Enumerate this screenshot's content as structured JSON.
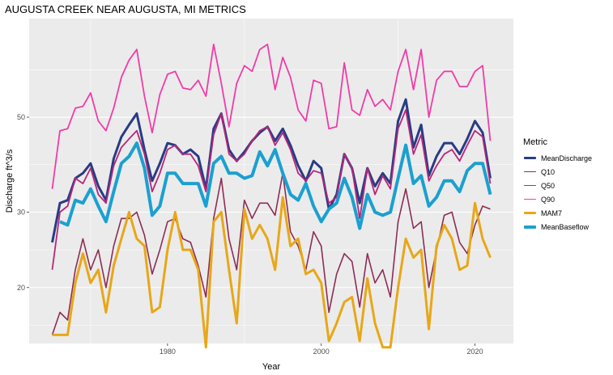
{
  "chart_data": {
    "type": "line",
    "title": "AUGUSTA CREEK NEAR AUGUSTA, MI  METRICS",
    "xlabel": "Year",
    "ylabel": "Discharge ft^3/s",
    "y_scale": "log",
    "xlim": [
      1962,
      2025
    ],
    "ylim": [
      14.8,
      85
    ],
    "x_ticks": [
      1980,
      2000,
      2020
    ],
    "x_tick_labels": [
      "1980",
      "2000",
      "2020"
    ],
    "y_ticks": [
      20,
      30,
      50
    ],
    "y_tick_labels": [
      "20",
      "30",
      "50"
    ],
    "grid": true,
    "legend_title": "Metric",
    "legend_position": "right",
    "years": [
      1965,
      1966,
      1967,
      1968,
      1969,
      1970,
      1971,
      1972,
      1973,
      1974,
      1975,
      1976,
      1977,
      1978,
      1979,
      1980,
      1981,
      1982,
      1983,
      1984,
      1985,
      1986,
      1987,
      1988,
      1989,
      1990,
      1991,
      1992,
      1993,
      1994,
      1995,
      1996,
      1997,
      1998,
      1999,
      2000,
      2001,
      2002,
      2003,
      2004,
      2005,
      2006,
      2007,
      2008,
      2009,
      2010,
      2011,
      2012,
      2013,
      2014,
      2015,
      2016,
      2017,
      2018,
      2019,
      2020,
      2021,
      2022
    ],
    "series": [
      {
        "name": "MeanDischarge",
        "color": "#283c84",
        "width": 3,
        "values": [
          25.5,
          31.5,
          32,
          36,
          37,
          39,
          34.5,
          32,
          40,
          45,
          48,
          51,
          42,
          35.5,
          39,
          43.5,
          43,
          41,
          42,
          40.5,
          34,
          47,
          51,
          42,
          39.5,
          41.5,
          44,
          46,
          47.5,
          44,
          47,
          43,
          38.5,
          35.5,
          39.5,
          38,
          30.5,
          33,
          41,
          38,
          31.5,
          38,
          34.5,
          37,
          35,
          49,
          55,
          42.5,
          48,
          36.5,
          40.5,
          43.5,
          43.5,
          41,
          44.5,
          49,
          46,
          36
        ]
      },
      {
        "name": "Q10",
        "color": "#8c2d55",
        "width": 1.6,
        "values": [
          15.5,
          17.5,
          16.8,
          22,
          26,
          22,
          24.5,
          20,
          25,
          29,
          29,
          30,
          26.5,
          21.5,
          24.5,
          28.5,
          29,
          26,
          25.5,
          22.5,
          19,
          29,
          36,
          26,
          22,
          32,
          29,
          31.5,
          31.5,
          29.5,
          37,
          27,
          25,
          22,
          27,
          25,
          17.5,
          21.5,
          24,
          23,
          18,
          24,
          20.5,
          22,
          19,
          28.5,
          34,
          27.5,
          28.5,
          20,
          24.5,
          29.5,
          30,
          25.5,
          24,
          28,
          31,
          30.5
        ]
      },
      {
        "name": "Q50",
        "color": "#b8267a",
        "width": 1.8,
        "values": [
          22,
          30,
          31,
          36,
          35,
          38,
          33,
          31.5,
          38.5,
          42.5,
          44.5,
          46.5,
          41,
          33.5,
          37,
          42,
          43,
          41,
          41,
          38.5,
          33.5,
          45.5,
          51,
          41,
          39.5,
          41,
          44,
          46.5,
          47.5,
          43,
          46,
          42,
          37,
          35.5,
          37.5,
          37,
          31.5,
          32.5,
          41,
          38,
          29,
          38,
          33,
          36.5,
          34,
          47,
          52,
          41,
          45.5,
          35.5,
          38.5,
          41,
          42,
          39.5,
          43,
          46.5,
          45,
          35
        ]
      },
      {
        "name": "Q90",
        "color": "#f03ca8",
        "width": 1.8,
        "values": [
          34,
          46.5,
          47,
          52.5,
          53,
          57,
          49,
          46.5,
          52.5,
          62,
          68,
          72,
          56,
          46,
          56.5,
          63,
          64,
          58.5,
          58,
          61,
          56,
          74,
          60,
          47.5,
          60,
          66,
          64,
          72,
          74,
          58,
          69,
          62,
          52,
          49,
          61,
          60,
          47,
          47.5,
          67,
          52,
          50.5,
          58,
          53,
          55,
          52,
          64,
          72,
          58,
          72,
          50,
          61,
          64,
          64,
          59,
          59,
          64,
          66,
          44
        ]
      },
      {
        "name": "MAM7",
        "color": "#e8a717",
        "width": 3,
        "values": [
          15.5,
          15.5,
          15.5,
          20.5,
          24,
          20.5,
          22,
          17.5,
          22.5,
          26,
          30,
          26,
          25,
          17.5,
          18,
          24.5,
          30,
          24.5,
          24.5,
          22,
          14.5,
          28.5,
          30,
          22,
          16.5,
          30.5,
          26,
          28,
          26,
          22,
          32.5,
          25,
          26,
          21.5,
          22,
          20.5,
          15,
          16.5,
          18.5,
          19,
          15,
          21,
          16.5,
          14.5,
          14.5,
          20,
          26,
          23.5,
          24.5,
          16,
          25,
          28,
          26,
          22,
          22.5,
          31.5,
          26,
          23.5
        ]
      },
      {
        "name": "MeanBaseflow",
        "color": "#1ba0d0",
        "width": 4,
        "values": [
          null,
          28.5,
          28,
          32,
          31.5,
          34,
          31,
          28.5,
          33.5,
          39,
          40.5,
          43.5,
          38,
          29.5,
          31,
          37,
          37,
          35,
          35,
          35,
          31,
          39,
          40.5,
          37,
          37,
          36,
          36.5,
          41.5,
          38.5,
          42,
          37,
          33,
          32,
          35,
          31,
          28.5,
          30.5,
          31.5,
          36,
          32.5,
          27.5,
          33,
          30,
          29.5,
          30,
          36,
          43,
          35,
          36.5,
          31,
          32.5,
          35.5,
          35.5,
          33.5,
          37.5,
          39,
          39,
          33
        ]
      }
    ]
  }
}
